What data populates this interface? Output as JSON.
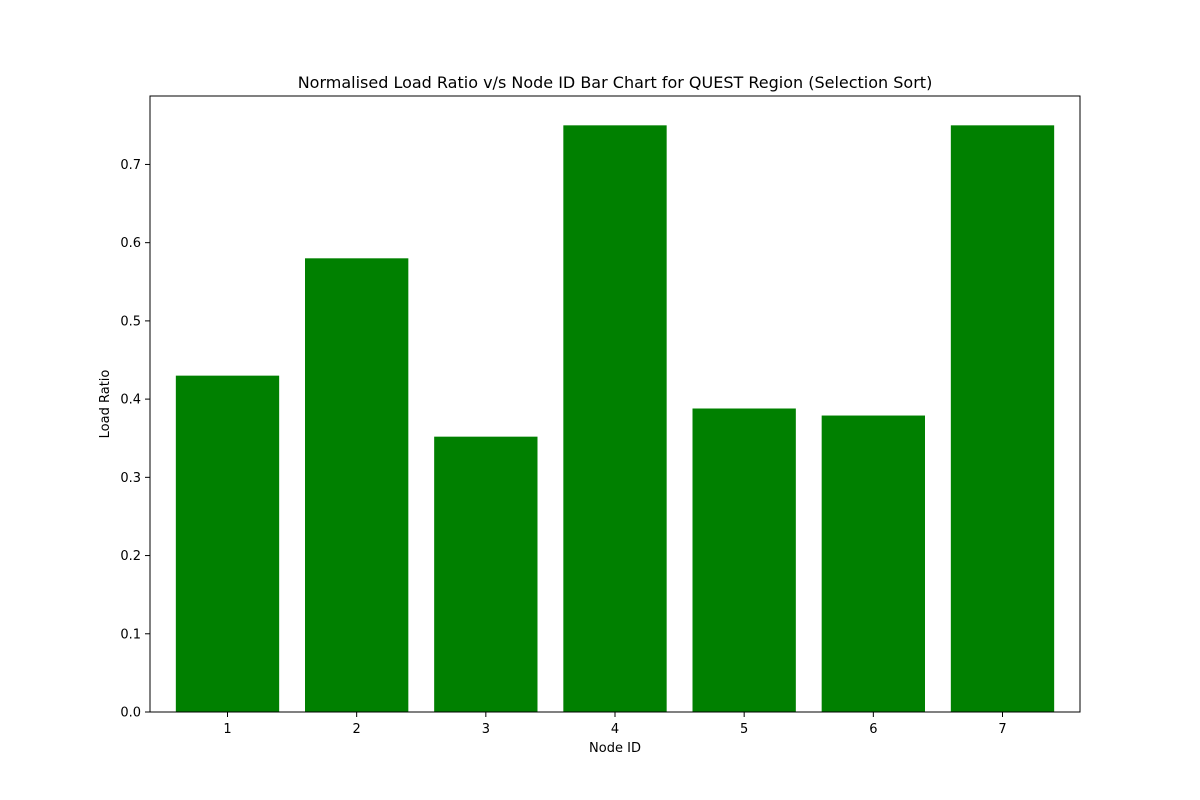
{
  "chart_data": {
    "type": "bar",
    "title": "Normalised Load Ratio v/s Node ID Bar Chart for QUEST Region (Selection Sort)",
    "xlabel": "Node ID",
    "ylabel": "Load Ratio",
    "categories": [
      "1",
      "2",
      "3",
      "4",
      "5",
      "6",
      "7"
    ],
    "values": [
      0.43,
      0.58,
      0.352,
      0.75,
      0.388,
      0.379,
      0.75
    ],
    "ylim": [
      0,
      0.7875
    ],
    "yticks": [
      "0.0",
      "0.1",
      "0.2",
      "0.3",
      "0.4",
      "0.5",
      "0.6",
      "0.7"
    ],
    "bar_color": "#008000",
    "grid": false,
    "legend": "none"
  }
}
